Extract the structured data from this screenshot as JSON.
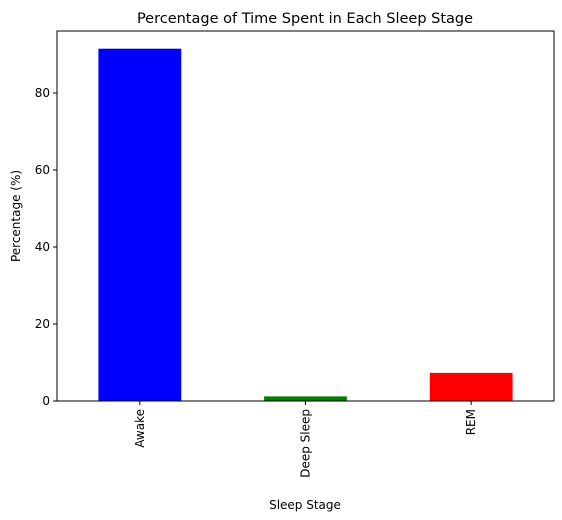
{
  "chart_data": {
    "type": "bar",
    "title": "Percentage of Time Spent in Each Sleep Stage",
    "xlabel": "Sleep Stage",
    "ylabel": "Percentage (%)",
    "categories": [
      "Awake",
      "Deep Sleep",
      "REM"
    ],
    "values": [
      91.5,
      1.2,
      7.3
    ],
    "colors": [
      "#0000ff",
      "#008000",
      "#ff0000"
    ],
    "ylim": [
      0,
      96.1
    ],
    "yticks": [
      0,
      20,
      40,
      60,
      80
    ],
    "ytick_labels": [
      "0",
      "20",
      "40",
      "60",
      "80"
    ],
    "grid": false,
    "legend": "none"
  }
}
